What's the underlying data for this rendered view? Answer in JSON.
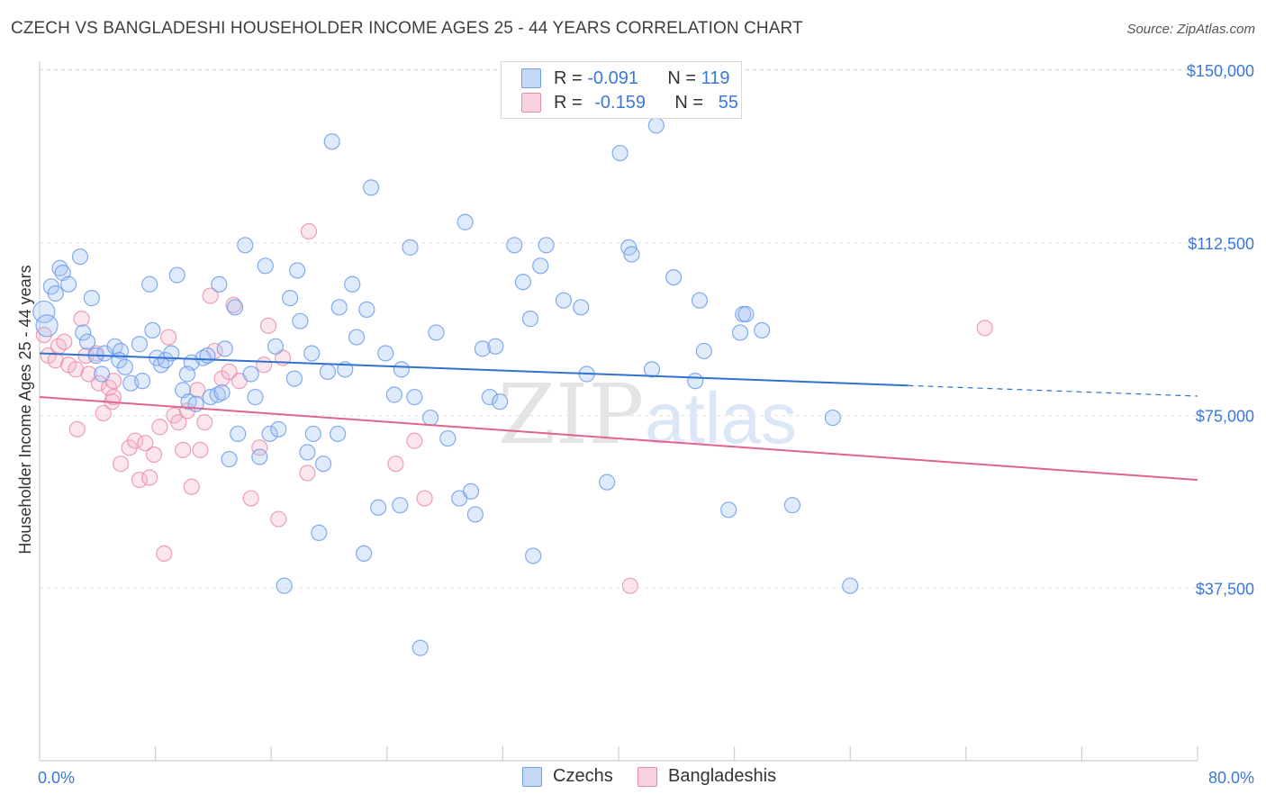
{
  "header": {
    "title": "CZECH VS BANGLADESHI HOUSEHOLDER INCOME AGES 25 - 44 YEARS CORRELATION CHART",
    "source": "Source: ZipAtlas.com"
  },
  "legend": {
    "rows": [
      {
        "r_label": "R =",
        "r_value": "-0.091",
        "n_label": "N =",
        "n_value": "119",
        "color": "#a4c2f4"
      },
      {
        "r_label": "R =",
        "r_value": "-0.159",
        "n_label": "N =",
        "n_value": "55",
        "color": "#f4b6c9"
      }
    ]
  },
  "bottom_legend": {
    "items": [
      {
        "label": "Czechs",
        "color": "#a4c2f4"
      },
      {
        "label": "Bangladeshis",
        "color": "#f4b6c9"
      }
    ]
  },
  "watermark": {
    "part1": "ZIP",
    "part2": "atlas"
  },
  "chart_data": {
    "type": "scatter",
    "title": "CZECH VS BANGLADESHI HOUSEHOLDER INCOME AGES 25 - 44 YEARS CORRELATION CHART",
    "xlabel": "",
    "ylabel": "Householder Income Ages 25 - 44 years",
    "xlim": [
      0,
      80
    ],
    "ylim": [
      0,
      153000
    ],
    "x_tick_labels": {
      "left": "0.0%",
      "right": "80.0%"
    },
    "y_ticks": [
      {
        "value": 37500,
        "label": "$37,500"
      },
      {
        "value": 75000,
        "label": "$75,000"
      },
      {
        "value": 112500,
        "label": "$112,500"
      },
      {
        "value": 150000,
        "label": "$150,000"
      }
    ],
    "grid": true,
    "legend_position": "top-center",
    "colors": {
      "czechs_stroke": "#6d9eeb",
      "czechs_fill": "#a4c2f4",
      "bangladeshis_stroke": "#e88aa8",
      "bangladeshis_fill": "#f4b6c9",
      "czechs_line": "#2f72d0",
      "bangladeshis_line": "#e0648e",
      "tick_label": "#3c78d8"
    },
    "series": [
      {
        "name": "Czechs",
        "r": -0.091,
        "n": 119,
        "trend": {
          "x0": 0,
          "y0": 88500,
          "x1": 60,
          "y1": 81500,
          "dash_to_x": 80,
          "dash_to_y": 79200
        },
        "points": [
          [
            0.3,
            97500
          ],
          [
            0.5,
            94500
          ],
          [
            0.8,
            103000
          ],
          [
            1.1,
            101500
          ],
          [
            1.4,
            107000
          ],
          [
            1.6,
            106000
          ],
          [
            2.0,
            103500
          ],
          [
            2.8,
            109500
          ],
          [
            3.6,
            100500
          ],
          [
            3.0,
            93000
          ],
          [
            3.3,
            91000
          ],
          [
            3.9,
            88000
          ],
          [
            4.3,
            84000
          ],
          [
            4.5,
            88500
          ],
          [
            5.2,
            90000
          ],
          [
            5.6,
            89000
          ],
          [
            5.5,
            87000
          ],
          [
            5.9,
            85500
          ],
          [
            6.3,
            82000
          ],
          [
            6.9,
            90500
          ],
          [
            7.1,
            82500
          ],
          [
            7.6,
            103500
          ],
          [
            7.8,
            93500
          ],
          [
            8.1,
            87500
          ],
          [
            8.4,
            86000
          ],
          [
            8.7,
            87000
          ],
          [
            9.1,
            88500
          ],
          [
            9.5,
            105500
          ],
          [
            9.9,
            80500
          ],
          [
            10.3,
            78000
          ],
          [
            10.5,
            86500
          ],
          [
            10.8,
            77500
          ],
          [
            11.3,
            87500
          ],
          [
            11.6,
            88000
          ],
          [
            11.8,
            79000
          ],
          [
            12.3,
            79500
          ],
          [
            12.6,
            80000
          ],
          [
            12.8,
            89500
          ],
          [
            13.1,
            65500
          ],
          [
            13.7,
            71000
          ],
          [
            12.4,
            103500
          ],
          [
            13.5,
            98500
          ],
          [
            14.2,
            112000
          ],
          [
            14.6,
            84000
          ],
          [
            14.9,
            79000
          ],
          [
            15.2,
            66000
          ],
          [
            15.6,
            107500
          ],
          [
            15.9,
            71000
          ],
          [
            16.3,
            90000
          ],
          [
            16.5,
            72000
          ],
          [
            16.9,
            38000
          ],
          [
            17.3,
            100500
          ],
          [
            17.6,
            83000
          ],
          [
            17.8,
            106500
          ],
          [
            18.0,
            95500
          ],
          [
            18.5,
            67000
          ],
          [
            18.8,
            88500
          ],
          [
            18.9,
            71000
          ],
          [
            19.3,
            49500
          ],
          [
            19.6,
            64500
          ],
          [
            19.9,
            84500
          ],
          [
            20.2,
            134500
          ],
          [
            20.6,
            71000
          ],
          [
            20.7,
            98500
          ],
          [
            21.1,
            85000
          ],
          [
            21.6,
            103500
          ],
          [
            21.9,
            92000
          ],
          [
            22.4,
            45000
          ],
          [
            22.6,
            98000
          ],
          [
            22.9,
            124500
          ],
          [
            23.4,
            55000
          ],
          [
            23.9,
            88500
          ],
          [
            24.5,
            79500
          ],
          [
            24.9,
            55500
          ],
          [
            25.0,
            85000
          ],
          [
            25.6,
            111500
          ],
          [
            25.9,
            79000
          ],
          [
            26.3,
            24500
          ],
          [
            27.0,
            74500
          ],
          [
            27.4,
            93000
          ],
          [
            28.2,
            70000
          ],
          [
            29.0,
            57000
          ],
          [
            29.4,
            117000
          ],
          [
            29.8,
            58500
          ],
          [
            30.1,
            53500
          ],
          [
            30.6,
            89500
          ],
          [
            31.1,
            79000
          ],
          [
            31.5,
            90000
          ],
          [
            31.8,
            78000
          ],
          [
            32.8,
            112000
          ],
          [
            33.4,
            104000
          ],
          [
            33.9,
            96000
          ],
          [
            34.1,
            44500
          ],
          [
            34.6,
            107500
          ],
          [
            35.0,
            112000
          ],
          [
            36.2,
            100000
          ],
          [
            37.4,
            98500
          ],
          [
            37.8,
            84000
          ],
          [
            39.2,
            60500
          ],
          [
            40.1,
            132000
          ],
          [
            40.7,
            111500
          ],
          [
            40.9,
            110000
          ],
          [
            42.3,
            85000
          ],
          [
            42.6,
            138000
          ],
          [
            43.8,
            105000
          ],
          [
            45.3,
            82500
          ],
          [
            45.9,
            89000
          ],
          [
            45.6,
            100000
          ],
          [
            47.6,
            54500
          ],
          [
            48.4,
            93000
          ],
          [
            48.6,
            97000
          ],
          [
            48.8,
            97000
          ],
          [
            49.9,
            93500
          ],
          [
            52.0,
            55500
          ],
          [
            54.8,
            74500
          ],
          [
            56.0,
            38000
          ],
          [
            10.2,
            84000
          ]
        ]
      },
      {
        "name": "Bangladeshis",
        "r": -0.159,
        "n": 55,
        "trend": {
          "x0": 0,
          "y0": 79000,
          "x1": 80,
          "y1": 61000
        },
        "points": [
          [
            0.3,
            92500
          ],
          [
            0.6,
            88000
          ],
          [
            1.1,
            87000
          ],
          [
            1.3,
            90000
          ],
          [
            1.7,
            91000
          ],
          [
            2.0,
            86000
          ],
          [
            2.5,
            85000
          ],
          [
            2.9,
            96000
          ],
          [
            2.6,
            72000
          ],
          [
            3.2,
            88000
          ],
          [
            3.9,
            88500
          ],
          [
            4.1,
            82000
          ],
          [
            4.4,
            75500
          ],
          [
            4.8,
            81000
          ],
          [
            5.0,
            78000
          ],
          [
            5.1,
            82500
          ],
          [
            5.6,
            64500
          ],
          [
            6.2,
            68000
          ],
          [
            6.6,
            69500
          ],
          [
            6.9,
            61000
          ],
          [
            7.3,
            69000
          ],
          [
            7.6,
            61500
          ],
          [
            7.9,
            66500
          ],
          [
            8.3,
            72500
          ],
          [
            8.6,
            45000
          ],
          [
            8.9,
            92000
          ],
          [
            9.3,
            75000
          ],
          [
            9.6,
            73500
          ],
          [
            9.9,
            67500
          ],
          [
            10.2,
            76000
          ],
          [
            10.5,
            59500
          ],
          [
            10.9,
            80500
          ],
          [
            11.1,
            67500
          ],
          [
            11.4,
            73500
          ],
          [
            11.8,
            101000
          ],
          [
            12.1,
            89000
          ],
          [
            12.6,
            83000
          ],
          [
            13.1,
            84500
          ],
          [
            13.4,
            99000
          ],
          [
            13.8,
            82500
          ],
          [
            14.6,
            57000
          ],
          [
            15.2,
            68000
          ],
          [
            15.5,
            86000
          ],
          [
            15.8,
            94500
          ],
          [
            16.5,
            52500
          ],
          [
            16.8,
            87500
          ],
          [
            18.5,
            62500
          ],
          [
            18.6,
            115000
          ],
          [
            24.6,
            64500
          ],
          [
            25.9,
            69500
          ],
          [
            26.6,
            57000
          ],
          [
            40.8,
            38000
          ],
          [
            65.3,
            94000
          ],
          [
            5.1,
            79000
          ],
          [
            3.4,
            84000
          ]
        ]
      }
    ]
  }
}
